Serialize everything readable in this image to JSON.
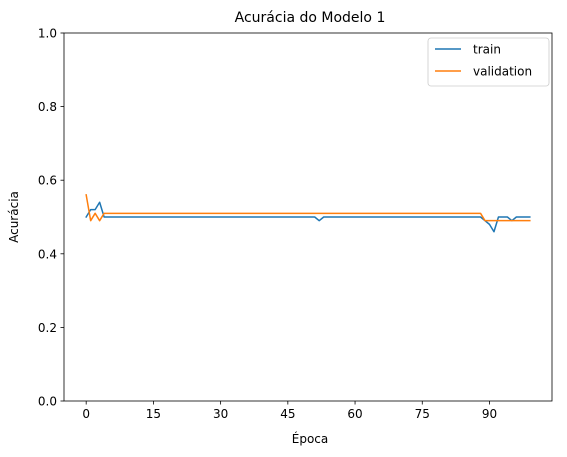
{
  "chart_data": {
    "type": "line",
    "title": "Acurácia do Modelo 1",
    "xlabel": "Época",
    "ylabel": "Acurácia",
    "xlim": [
      -4.95,
      103.95
    ],
    "ylim": [
      0,
      1
    ],
    "xticks": [
      0,
      15,
      30,
      45,
      60,
      75,
      90
    ],
    "xtick_labels": [
      "0",
      "15",
      "30",
      "45",
      "60",
      "75",
      "90"
    ],
    "yticks": [
      0.0,
      0.2,
      0.4,
      0.6,
      0.8,
      1.0
    ],
    "ytick_labels": [
      "0.0",
      "0.2",
      "0.4",
      "0.6",
      "0.8",
      "1.0"
    ],
    "grid": false,
    "legend_position": "top-right",
    "series": [
      {
        "name": "train",
        "color": "#1f77b4",
        "x": [
          0,
          1,
          2,
          3,
          4,
          5,
          51,
          52,
          53,
          88,
          89,
          90,
          91,
          92,
          93,
          94,
          95,
          96,
          97,
          98,
          99
        ],
        "y": [
          0.5,
          0.52,
          0.52,
          0.54,
          0.5,
          0.5,
          0.5,
          0.49,
          0.5,
          0.5,
          0.49,
          0.48,
          0.46,
          0.5,
          0.5,
          0.5,
          0.49,
          0.5,
          0.5,
          0.5,
          0.5
        ]
      },
      {
        "name": "validation",
        "color": "#ff7f0e",
        "x": [
          0,
          1,
          2,
          3,
          4,
          5,
          88,
          89,
          90,
          91,
          92,
          93,
          94,
          95,
          96,
          97,
          98,
          99
        ],
        "y": [
          0.56,
          0.49,
          0.51,
          0.49,
          0.51,
          0.51,
          0.51,
          0.49,
          0.49,
          0.49,
          0.49,
          0.49,
          0.49,
          0.49,
          0.49,
          0.49,
          0.49,
          0.49
        ]
      }
    ]
  }
}
